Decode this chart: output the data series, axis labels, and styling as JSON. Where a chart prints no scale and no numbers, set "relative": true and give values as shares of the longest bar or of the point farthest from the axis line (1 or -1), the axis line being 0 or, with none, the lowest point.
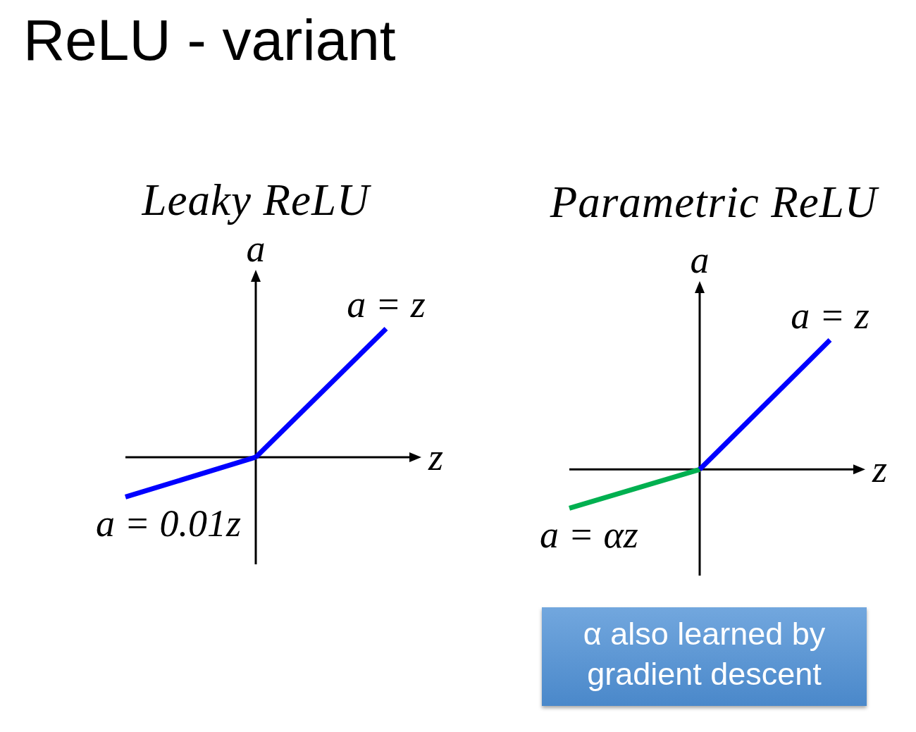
{
  "chart_data": [
    {
      "type": "other",
      "title": "ReLU - variant"
    },
    {
      "type": "line",
      "title": "Leaky ReLU",
      "xlabel": "z",
      "ylabel": "a",
      "categories": [
        null,
        null,
        null
      ],
      "relative": true,
      "tick_labels": false,
      "marker": "none",
      "series": [
        {
          "name": "a = 0.01z",
          "color": "#0000ff",
          "values": [
            -0.31,
            0,
            null
          ]
        },
        {
          "name": "a = z",
          "color": "#0000ff",
          "values": [
            null,
            0,
            1
          ]
        }
      ]
    },
    {
      "type": "line",
      "title": "Parametric ReLU",
      "xlabel": "z",
      "ylabel": "a",
      "categories": [
        null,
        null,
        null
      ],
      "relative": true,
      "tick_labels": false,
      "marker": "none",
      "series": [
        {
          "name": "a = αz",
          "color": "#00b050",
          "values": [
            -0.3,
            0,
            null
          ]
        },
        {
          "name": "a = z",
          "color": "#0000ff",
          "values": [
            null,
            0,
            1
          ]
        }
      ],
      "annotations": [
        "α also learned by gradient descent"
      ]
    }
  ]
}
